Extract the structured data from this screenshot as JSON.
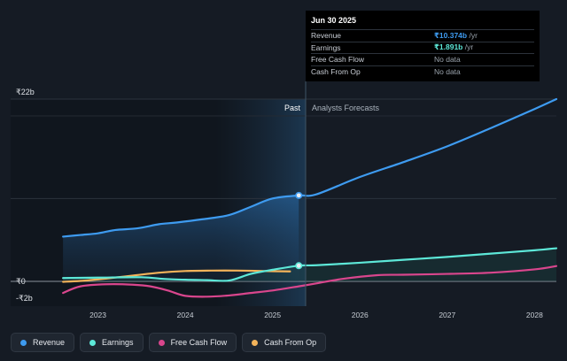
{
  "chart_data": {
    "type": "area",
    "y_axis": {
      "top_label": "₹22b",
      "zero_label": "₹0",
      "bottom_label": "-₹2b",
      "ylim": [
        -2,
        22
      ]
    },
    "x_axis": {
      "ticks": [
        "2023",
        "2024",
        "2025",
        "2026",
        "2027",
        "2028"
      ]
    },
    "sections": {
      "past": "Past",
      "forecast": "Analysts Forecasts"
    },
    "series": [
      {
        "name": "Revenue",
        "color": "#3e9bf0",
        "points": [
          [
            2022.6,
            5.4
          ],
          [
            2022.8,
            5.6
          ],
          [
            2023.0,
            5.8
          ],
          [
            2023.2,
            6.2
          ],
          [
            2023.45,
            6.4
          ],
          [
            2023.7,
            6.9
          ],
          [
            2023.9,
            7.1
          ],
          [
            2024.2,
            7.5
          ],
          [
            2024.5,
            8.0
          ],
          [
            2024.75,
            9.0
          ],
          [
            2025.0,
            10.0
          ],
          [
            2025.3,
            10.374
          ],
          [
            2025.5,
            10.5
          ],
          [
            2026.0,
            12.6
          ],
          [
            2026.5,
            14.4
          ],
          [
            2027.0,
            16.3
          ],
          [
            2027.5,
            18.5
          ],
          [
            2028.0,
            20.8
          ],
          [
            2028.25,
            22.0
          ]
        ]
      },
      {
        "name": "Earnings",
        "color": "#5de8d8",
        "points": [
          [
            2022.6,
            0.4
          ],
          [
            2023.0,
            0.45
          ],
          [
            2023.5,
            0.5
          ],
          [
            2023.75,
            0.3
          ],
          [
            2024.0,
            0.2
          ],
          [
            2024.25,
            0.15
          ],
          [
            2024.5,
            0.1
          ],
          [
            2024.75,
            0.9
          ],
          [
            2025.0,
            1.4
          ],
          [
            2025.3,
            1.891
          ],
          [
            2025.5,
            1.95
          ],
          [
            2026.0,
            2.25
          ],
          [
            2026.5,
            2.6
          ],
          [
            2027.0,
            2.95
          ],
          [
            2027.5,
            3.35
          ],
          [
            2028.0,
            3.75
          ],
          [
            2028.25,
            4.0
          ]
        ]
      },
      {
        "name": "Free Cash Flow",
        "color": "#d9468d",
        "points": [
          [
            2022.6,
            -1.4
          ],
          [
            2022.8,
            -0.6
          ],
          [
            2023.1,
            -0.35
          ],
          [
            2023.4,
            -0.4
          ],
          [
            2023.6,
            -0.6
          ],
          [
            2023.8,
            -1.1
          ],
          [
            2024.0,
            -1.75
          ],
          [
            2024.25,
            -1.85
          ],
          [
            2024.5,
            -1.7
          ],
          [
            2024.75,
            -1.4
          ],
          [
            2025.0,
            -1.1
          ],
          [
            2025.3,
            -0.6
          ],
          [
            2025.5,
            -0.25
          ],
          [
            2025.8,
            0.3
          ],
          [
            2026.2,
            0.75
          ],
          [
            2026.5,
            0.8
          ],
          [
            2027.0,
            0.9
          ],
          [
            2027.5,
            1.05
          ],
          [
            2028.0,
            1.45
          ],
          [
            2028.25,
            1.85
          ]
        ]
      },
      {
        "name": "Cash From Op",
        "color": "#f3b35a",
        "points": [
          [
            2022.6,
            -0.05
          ],
          [
            2022.8,
            0.05
          ],
          [
            2023.1,
            0.35
          ],
          [
            2023.4,
            0.7
          ],
          [
            2023.7,
            1.05
          ],
          [
            2024.0,
            1.25
          ],
          [
            2024.3,
            1.3
          ],
          [
            2024.6,
            1.3
          ],
          [
            2024.9,
            1.25
          ],
          [
            2025.2,
            1.2
          ]
        ]
      }
    ],
    "tooltip": {
      "date": "Jun 30 2025",
      "rows": [
        {
          "label": "Revenue",
          "value": "₹10.374b",
          "unit": " /yr",
          "color": "#3e9bf0"
        },
        {
          "label": "Earnings",
          "value": "₹1.891b",
          "unit": " /yr",
          "color": "#5de8d8"
        },
        {
          "label": "Free Cash Flow",
          "value": "No data",
          "unit": "",
          "color": "#9aa3ad"
        },
        {
          "label": "Cash From Op",
          "value": "No data",
          "unit": "",
          "color": "#9aa3ad"
        }
      ]
    },
    "legend_position": "bottom-left"
  },
  "legend": [
    {
      "label": "Revenue",
      "color": "#3e9bf0"
    },
    {
      "label": "Earnings",
      "color": "#5de8d8"
    },
    {
      "label": "Free Cash Flow",
      "color": "#d9468d"
    },
    {
      "label": "Cash From Op",
      "color": "#f3b35a"
    }
  ]
}
